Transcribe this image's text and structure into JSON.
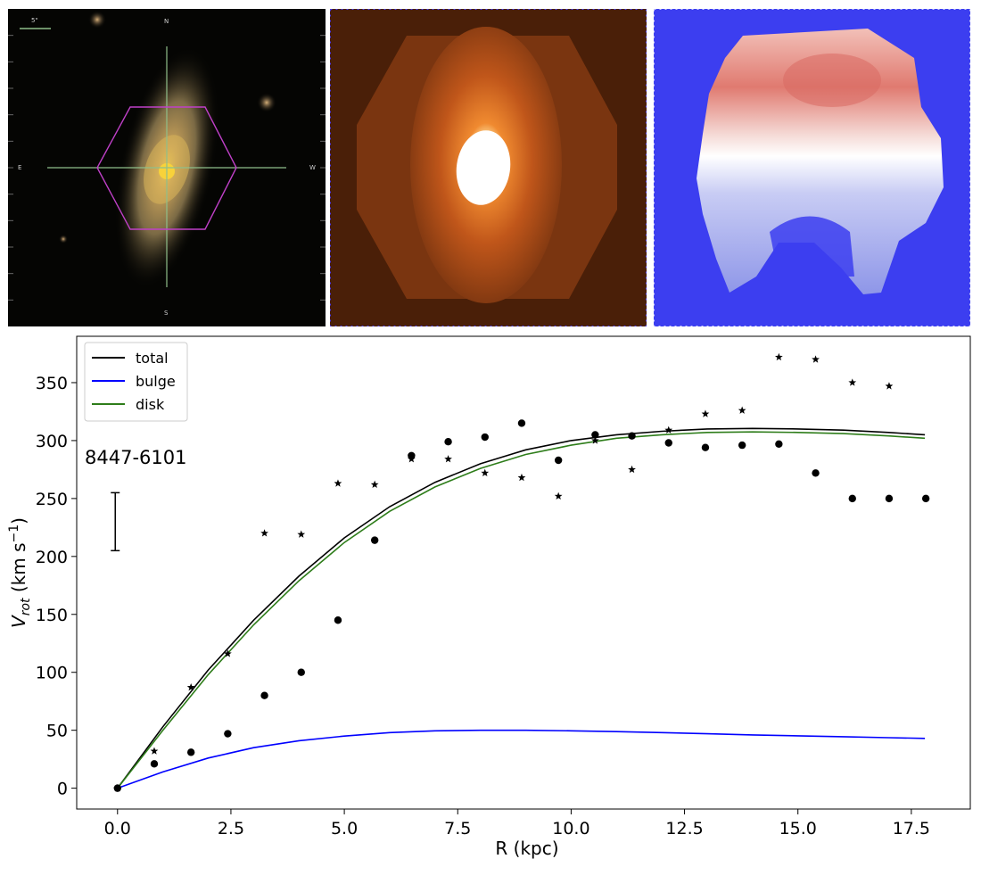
{
  "images": {
    "optical": {
      "scale_label": "5\"",
      "compass": {
        "north": "N",
        "south": "S",
        "east": "E",
        "west": "W"
      },
      "colors": {
        "background": "#050503",
        "galaxy": "#b59a62",
        "core": "#f2c23a",
        "hexagon": "#c040c8",
        "crosshair": "#8fbf8a"
      }
    },
    "flux_map": {
      "colors": {
        "background": "#4a1f08",
        "outer": "#7a3510",
        "mid": "#d8601c",
        "core": "#ffffff"
      }
    },
    "velocity_map": {
      "colors": {
        "background": "#3c3ef0",
        "receding": "#e07a70",
        "approaching": "#8e96e8",
        "systemic": "#ffffff"
      }
    }
  },
  "chart_data": {
    "type": "scatter",
    "annotation": "8447-6101",
    "xlabel": "R (kpc)",
    "ylabel": "V_rot (km s^-1)",
    "xlim": [
      -0.9,
      18.8
    ],
    "ylim": [
      -18,
      390
    ],
    "xticks": [
      "0.0",
      "2.5",
      "5.0",
      "7.5",
      "10.0",
      "12.5",
      "15.0",
      "17.5"
    ],
    "yticks": [
      "0",
      "50",
      "100",
      "150",
      "200",
      "250",
      "300",
      "350"
    ],
    "legend": {
      "position": "upper left",
      "entries": [
        "total",
        "bulge",
        "disk"
      ]
    },
    "colors": {
      "total": "#000000",
      "bulge": "#0000ff",
      "disk": "#2e7d1a",
      "points": "#000000"
    },
    "error_bar": {
      "x": -0.05,
      "y_low": 205,
      "y_high": 255
    },
    "circles": {
      "x": [
        0.0,
        0.81,
        1.62,
        2.43,
        3.24,
        4.05,
        4.86,
        5.67,
        6.48,
        7.29,
        8.1,
        8.91,
        9.72,
        10.53,
        11.34,
        12.15,
        12.96,
        13.77,
        14.58,
        15.39,
        16.2,
        17.01,
        17.82
      ],
      "y": [
        0,
        21,
        31,
        47,
        80,
        100,
        145,
        214,
        287,
        299,
        303,
        315,
        283,
        305,
        304,
        298,
        294,
        296,
        297,
        272,
        250,
        250,
        250
      ]
    },
    "stars": {
      "x": [
        0.0,
        0.81,
        1.62,
        2.43,
        3.24,
        4.05,
        4.86,
        5.67,
        6.48,
        7.29,
        8.1,
        8.91,
        9.72,
        10.53,
        11.34,
        12.15,
        12.96,
        13.77,
        14.58,
        15.39,
        16.2,
        17.01
      ],
      "y": [
        0,
        32,
        87,
        116,
        220,
        219,
        263,
        262,
        284,
        284,
        272,
        268,
        252,
        300,
        275,
        309,
        323,
        326,
        372,
        370,
        350,
        347
      ]
    },
    "series": [
      {
        "name": "total",
        "x": [
          0,
          1,
          2,
          3,
          4,
          5,
          6,
          7,
          8,
          9,
          10,
          11,
          12,
          13,
          14,
          15,
          16,
          17,
          17.8
        ],
        "y": [
          0,
          53,
          102,
          145,
          183,
          216,
          243,
          264,
          280,
          292,
          300,
          305,
          308,
          310,
          310.5,
          310,
          309,
          307,
          305
        ]
      },
      {
        "name": "bulge",
        "x": [
          0,
          1,
          2,
          3,
          4,
          5,
          6,
          7,
          8,
          9,
          10,
          11,
          12,
          13,
          14,
          15,
          16,
          17,
          17.8
        ],
        "y": [
          0,
          14,
          26,
          35,
          41,
          45,
          48,
          49.5,
          50,
          50,
          49.5,
          48.8,
          48,
          47,
          46,
          45.2,
          44.4,
          43.6,
          43
        ]
      },
      {
        "name": "disk",
        "x": [
          0,
          1,
          2,
          3,
          4,
          5,
          6,
          7,
          8,
          9,
          10,
          11,
          12,
          13,
          14,
          15,
          16,
          17,
          17.8
        ],
        "y": [
          0,
          50,
          98,
          141,
          179,
          212,
          239,
          260,
          276,
          288,
          296,
          302,
          305,
          307,
          307.5,
          307,
          306,
          304,
          302
        ]
      }
    ]
  }
}
